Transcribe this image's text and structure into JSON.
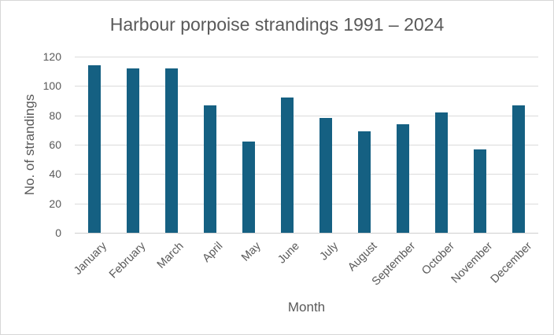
{
  "chart_data": {
    "type": "bar",
    "title": "Harbour porpoise strandings 1991 – 2024",
    "xlabel": "Month",
    "ylabel": "No. of strandings",
    "categories": [
      "January",
      "February",
      "March",
      "April",
      "May",
      "June",
      "July",
      "August",
      "September",
      "October",
      "November",
      "December"
    ],
    "values": [
      114,
      112,
      112,
      87,
      62,
      92,
      78,
      69,
      74,
      82,
      57,
      87
    ],
    "ylim": [
      0,
      120
    ],
    "yticks": [
      0,
      20,
      40,
      60,
      80,
      100,
      120
    ],
    "grid": "horizontal",
    "legend": "none",
    "bar_color": "#156082"
  },
  "colors": {
    "bar": "#156082",
    "text": "#595959",
    "gridline": "#DBDBDB",
    "axis_line": "#CFCFCF",
    "background": "#FFFFFF",
    "frame_border": "#D7D7D7"
  }
}
